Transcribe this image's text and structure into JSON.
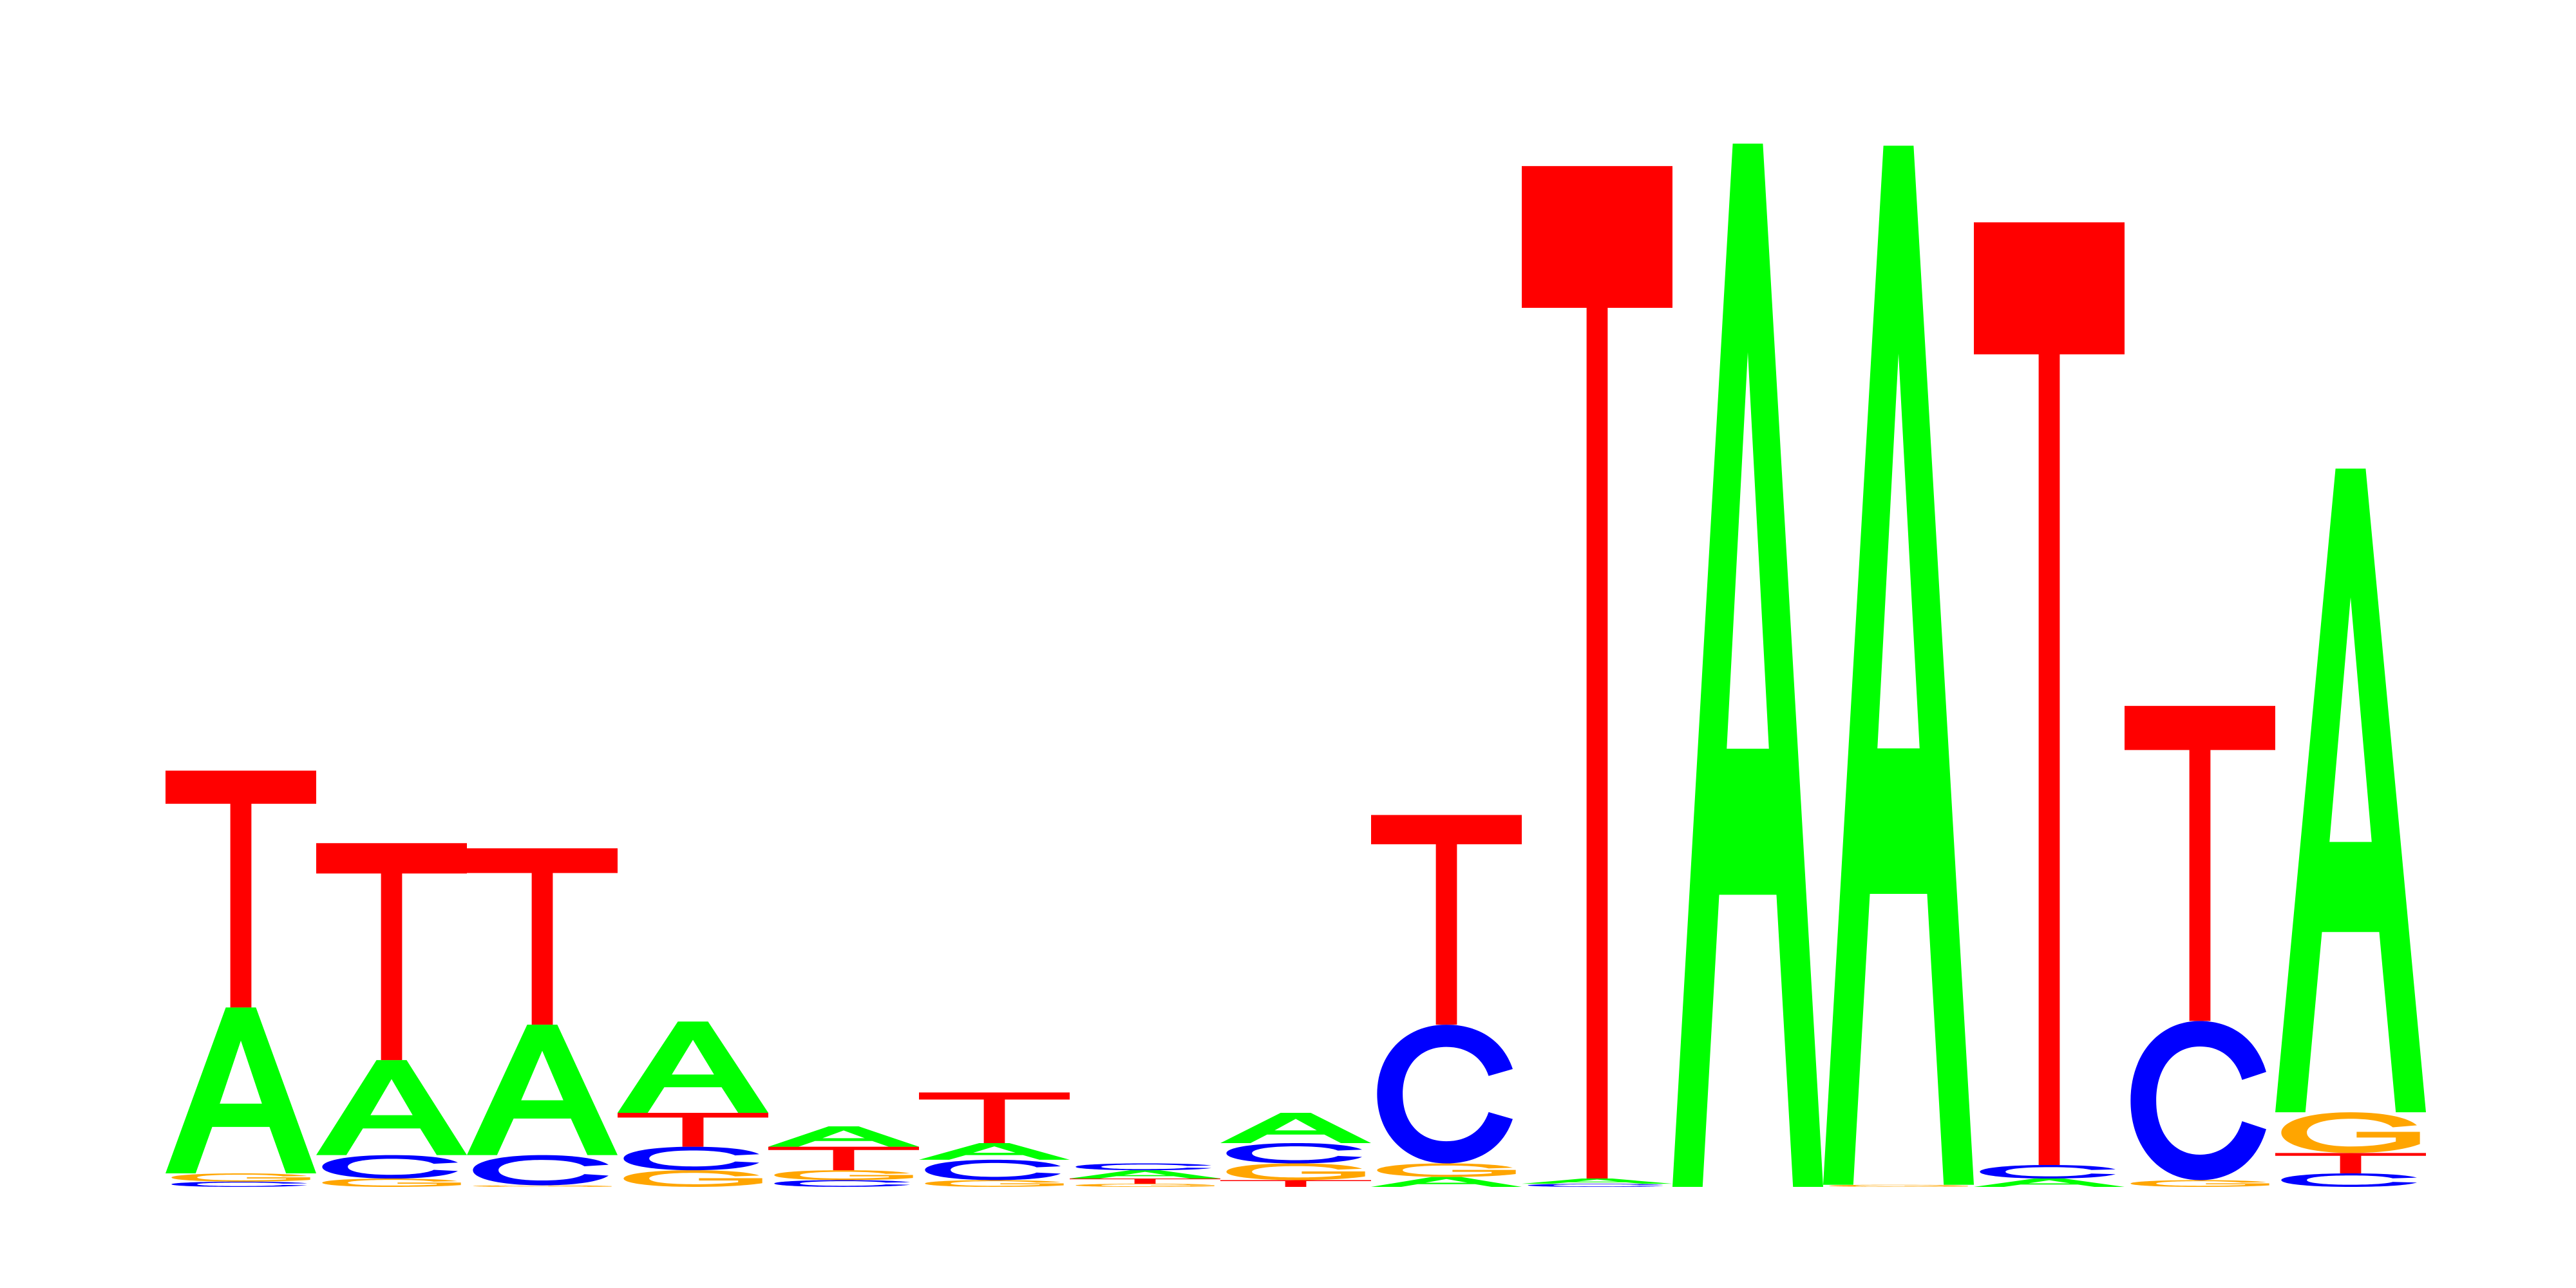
{
  "chart_data": {
    "type": "sequence_logo",
    "title": "",
    "xlabel": "",
    "ylabel": "",
    "ylim": [
      0,
      2.0
    ],
    "alphabet": [
      "A",
      "C",
      "G",
      "T"
    ],
    "colors": {
      "A": "#00ff00",
      "C": "#0000ff",
      "G": "#ffa500",
      "T": "#ff0000"
    },
    "positions": [
      {
        "index": 1,
        "stack": [
          {
            "letter": "C",
            "height": 0.01
          },
          {
            "letter": "G",
            "height": 0.016
          },
          {
            "letter": "A",
            "height": 0.318
          },
          {
            "letter": "T",
            "height": 0.454
          }
        ]
      },
      {
        "index": 2,
        "stack": [
          {
            "letter": "G",
            "height": 0.016
          },
          {
            "letter": "C",
            "height": 0.045
          },
          {
            "letter": "A",
            "height": 0.182
          },
          {
            "letter": "T",
            "height": 0.416
          }
        ]
      },
      {
        "index": 3,
        "stack": [
          {
            "letter": "G",
            "height": 0.003
          },
          {
            "letter": "C",
            "height": 0.058
          },
          {
            "letter": "A",
            "height": 0.25
          },
          {
            "letter": "T",
            "height": 0.338
          }
        ]
      },
      {
        "index": 4,
        "stack": [
          {
            "letter": "G",
            "height": 0.032
          },
          {
            "letter": "C",
            "height": 0.045
          },
          {
            "letter": "T",
            "height": 0.065
          },
          {
            "letter": "A",
            "height": 0.175
          }
        ]
      },
      {
        "index": 5,
        "stack": [
          {
            "letter": "C",
            "height": 0.013
          },
          {
            "letter": "G",
            "height": 0.019
          },
          {
            "letter": "T",
            "height": 0.045
          },
          {
            "letter": "A",
            "height": 0.039
          }
        ]
      },
      {
        "index": 6,
        "stack": [
          {
            "letter": "G",
            "height": 0.013
          },
          {
            "letter": "C",
            "height": 0.039
          },
          {
            "letter": "A",
            "height": 0.032
          },
          {
            "letter": "T",
            "height": 0.097
          }
        ]
      },
      {
        "index": 7,
        "stack": [
          {
            "letter": "G",
            "height": 0.006
          },
          {
            "letter": "T",
            "height": 0.01
          },
          {
            "letter": "A",
            "height": 0.016
          },
          {
            "letter": "C",
            "height": 0.013
          }
        ]
      },
      {
        "index": 8,
        "stack": [
          {
            "letter": "T",
            "height": 0.013
          },
          {
            "letter": "G",
            "height": 0.032
          },
          {
            "letter": "C",
            "height": 0.039
          },
          {
            "letter": "A",
            "height": 0.058
          }
        ]
      },
      {
        "index": 9,
        "stack": [
          {
            "letter": "A",
            "height": 0.019
          },
          {
            "letter": "G",
            "height": 0.026
          },
          {
            "letter": "C",
            "height": 0.266
          },
          {
            "letter": "T",
            "height": 0.402
          }
        ]
      },
      {
        "index": 10,
        "stack": [
          {
            "letter": "C",
            "height": 0.006
          },
          {
            "letter": "A",
            "height": 0.01
          },
          {
            "letter": "T",
            "height": 1.941
          }
        ]
      },
      {
        "index": 11,
        "stack": [
          {
            "letter": "A",
            "height": 2.0
          }
        ]
      },
      {
        "index": 12,
        "stack": [
          {
            "letter": "G",
            "height": 0.004
          },
          {
            "letter": "A",
            "height": 1.992
          }
        ]
      },
      {
        "index": 13,
        "stack": [
          {
            "letter": "A",
            "height": 0.016
          },
          {
            "letter": "C",
            "height": 0.026
          },
          {
            "letter": "T",
            "height": 1.807
          }
        ]
      },
      {
        "index": 14,
        "stack": [
          {
            "letter": "G",
            "height": 0.013
          },
          {
            "letter": "C",
            "height": 0.305
          },
          {
            "letter": "T",
            "height": 0.604
          }
        ]
      },
      {
        "index": 15,
        "stack": [
          {
            "letter": "C",
            "height": 0.026
          },
          {
            "letter": "T",
            "height": 0.039
          },
          {
            "letter": "G",
            "height": 0.078
          },
          {
            "letter": "A",
            "height": 1.234
          }
        ]
      }
    ]
  }
}
